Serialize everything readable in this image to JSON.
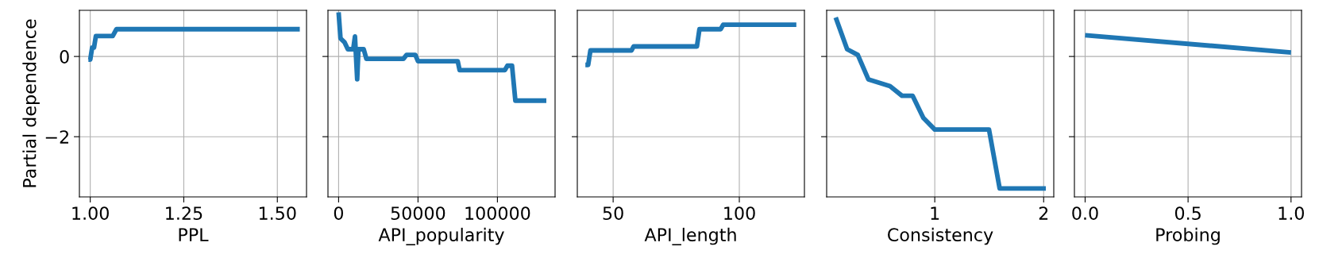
{
  "chart_data": [
    {
      "type": "line",
      "ylabel": "Partial dependence",
      "xlabel": "PPL",
      "xlim": [
        0.971,
        1.578
      ],
      "xticks": [
        {
          "value": 1.0,
          "label": "1.00"
        },
        {
          "value": 1.25,
          "label": "1.25"
        },
        {
          "value": 1.5,
          "label": "1.50"
        }
      ],
      "ylim": [
        -3.5,
        1.15
      ],
      "yticks": [
        -2,
        0
      ],
      "grid": true,
      "series": [
        {
          "color": "#1f77b4",
          "x": [
            0.995,
            1.0,
            1.005,
            1.01,
            1.015,
            1.06,
            1.07,
            1.56
          ],
          "values": [
            -0.08,
            -0.08,
            0.22,
            0.22,
            0.51,
            0.51,
            0.68,
            0.68
          ]
        }
      ]
    },
    {
      "type": "line",
      "xlabel": "API_popularity",
      "xlim": [
        -6700,
        136300
      ],
      "xticks": [
        0,
        50000,
        100000
      ],
      "ylim": [
        -3.5,
        1.15
      ],
      "yticks": [
        -2,
        0
      ],
      "grid": true,
      "tick_labels": "x",
      "series": [
        {
          "color": "#1f77b4",
          "x": [
            0,
            1200,
            3800,
            5800,
            9200,
            10300,
            11700,
            12500,
            15800,
            17500,
            40800,
            42800,
            48300,
            50000,
            75000,
            76200,
            104700,
            106300,
            109200,
            111300,
            130800
          ],
          "values": [
            1.1,
            0.45,
            0.35,
            0.18,
            0.18,
            0.5,
            -0.57,
            0.18,
            0.18,
            -0.06,
            -0.06,
            0.04,
            0.04,
            -0.12,
            -0.12,
            -0.34,
            -0.34,
            -0.23,
            -0.23,
            -1.1,
            -1.1
          ]
        }
      ]
    },
    {
      "type": "line",
      "xlabel": "API_length",
      "xlim": [
        35.8,
        125.8
      ],
      "xticks": [
        50,
        100
      ],
      "ylim": [
        -3.5,
        1.15
      ],
      "yticks": [
        -2,
        0
      ],
      "grid": true,
      "tick_labels": "x",
      "series": [
        {
          "color": "#1f77b4",
          "x": [
            39.0,
            40.1,
            41.0,
            57.3,
            58.1,
            83.2,
            84.2,
            92.6,
            93.6,
            122.6
          ],
          "values": [
            -0.21,
            -0.21,
            0.15,
            0.15,
            0.25,
            0.25,
            0.68,
            0.68,
            0.79,
            0.79
          ]
        }
      ]
    },
    {
      "type": "line",
      "xlabel": "Consistency",
      "xlim": [
        0.007,
        2.093
      ],
      "xticks": [
        1,
        2
      ],
      "ylim": [
        -3.5,
        1.15
      ],
      "yticks": [
        -2,
        0
      ],
      "grid": true,
      "tick_labels": "x",
      "series": [
        {
          "color": "#1f77b4",
          "x": [
            0.09,
            0.195,
            0.293,
            0.39,
            0.589,
            0.699,
            0.797,
            0.895,
            1.0,
            1.498,
            1.596,
            2.02
          ],
          "values": [
            0.97,
            0.18,
            0.04,
            -0.57,
            -0.74,
            -0.98,
            -0.98,
            -1.53,
            -1.82,
            -1.82,
            -3.29,
            -3.29
          ]
        }
      ]
    },
    {
      "type": "line",
      "xlabel": "Probing",
      "xlim": [
        -0.052,
        1.051
      ],
      "xticks": [
        {
          "value": 0,
          "label": "0.0"
        },
        {
          "value": 0.5,
          "label": "0.5"
        },
        {
          "value": 1,
          "label": "1.0"
        }
      ],
      "ylim": [
        -3.5,
        1.15
      ],
      "yticks": [
        -2,
        0
      ],
      "grid": true,
      "tick_labels": "x",
      "series": [
        {
          "color": "#1f77b4",
          "x": [
            0,
            1
          ],
          "values": [
            0.53,
            0.1
          ]
        }
      ]
    }
  ]
}
